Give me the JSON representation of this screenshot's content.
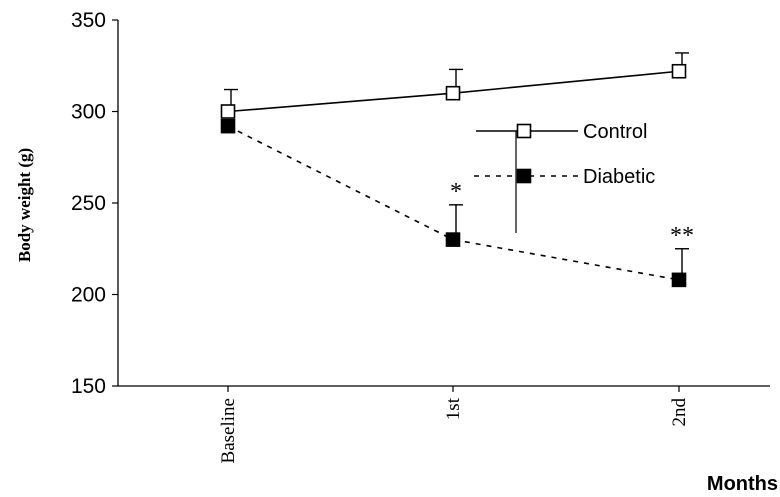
{
  "chart_data": {
    "type": "line",
    "categories": [
      "Baseline",
      "1st",
      "2nd"
    ],
    "ylabel": "Body weight (g)",
    "xlabel": "Months",
    "ylim": [
      150,
      350
    ],
    "yticks": [
      "150",
      "200",
      "250",
      "300",
      "350"
    ],
    "legend_position": "center-right",
    "series": [
      {
        "name": "Control",
        "values": [
          300,
          310,
          322
        ],
        "error": [
          12,
          13,
          10
        ],
        "marker": "open-square",
        "line_style": "solid"
      },
      {
        "name": "Diabetic",
        "values": [
          292,
          230,
          208
        ],
        "error": [
          0,
          19,
          17
        ],
        "marker": "filled-square",
        "line_style": "dashed",
        "annotations": [
          "",
          "*",
          "**"
        ]
      }
    ]
  }
}
